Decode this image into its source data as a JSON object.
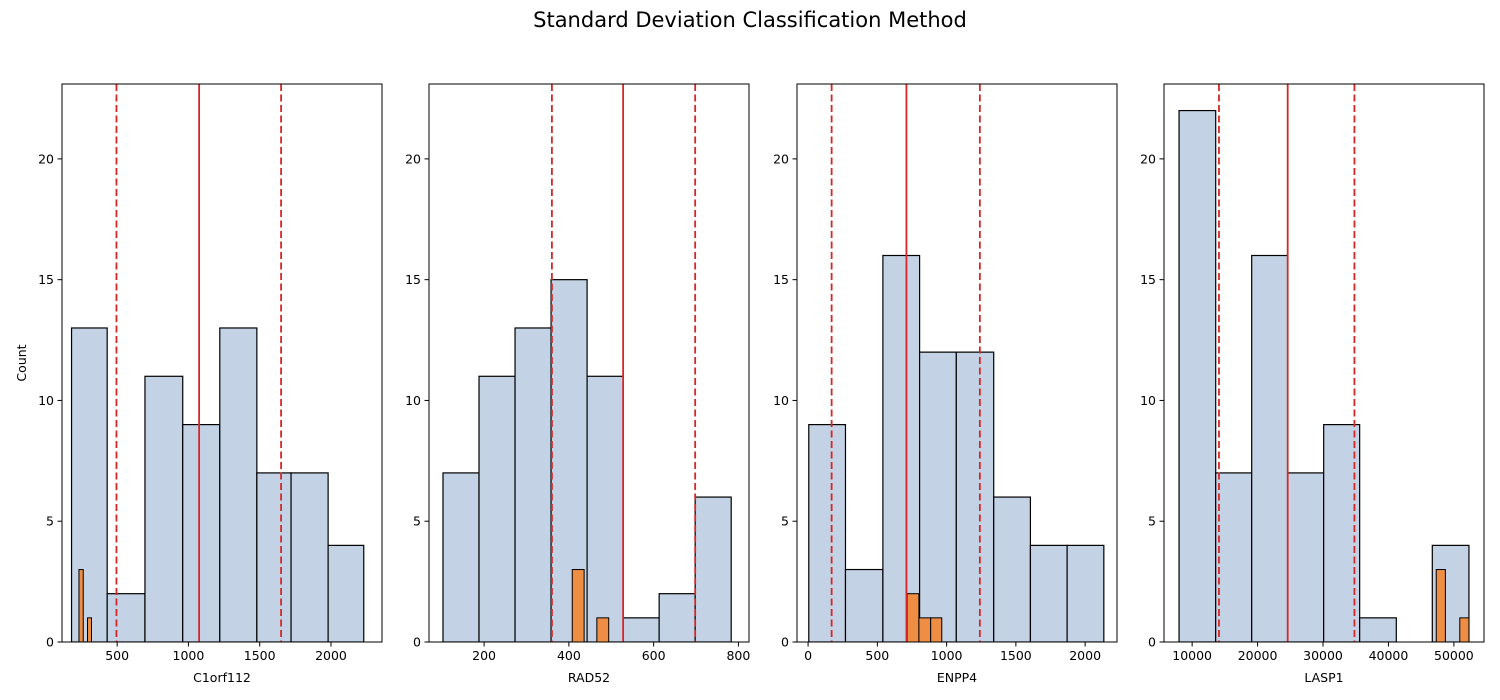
{
  "figure": {
    "title": "Standard Deviation Classification Method"
  },
  "colors": {
    "hist": "#c3d2e4",
    "highlight": "#ee8e44",
    "mean": "#d62728",
    "sd": "#d62728",
    "edge": "#000000"
  },
  "chart_data": [
    {
      "type": "bar",
      "xlabel": "C1orf112",
      "ylabel": "Count",
      "ylim": [
        0,
        23.1
      ],
      "xlim": [
        113,
        2358
      ],
      "xticks": [
        500,
        1000,
        1500,
        2000
      ],
      "yticks": [
        0,
        5,
        10,
        15,
        20
      ],
      "bins": [
        {
          "x0": 180,
          "x1": 430,
          "count": 13
        },
        {
          "x0": 430,
          "x1": 695,
          "count": 2
        },
        {
          "x0": 695,
          "x1": 960,
          "count": 11
        },
        {
          "x0": 960,
          "x1": 1220,
          "count": 9
        },
        {
          "x0": 1220,
          "x1": 1480,
          "count": 13
        },
        {
          "x0": 1480,
          "x1": 1720,
          "count": 7
        },
        {
          "x0": 1720,
          "x1": 1980,
          "count": 7
        },
        {
          "x0": 1980,
          "x1": 2230,
          "count": 4
        }
      ],
      "highlight_bins": [
        {
          "x0": 232,
          "x1": 262,
          "count": 3
        },
        {
          "x0": 292,
          "x1": 320,
          "count": 1
        }
      ],
      "mean": 1075,
      "sd_lines": [
        495,
        1650
      ]
    },
    {
      "type": "bar",
      "xlabel": "RAD52",
      "ylabel": "",
      "ylim": [
        0,
        23.1
      ],
      "xlim": [
        70,
        825
      ],
      "xticks": [
        200,
        400,
        600,
        800
      ],
      "yticks": [
        0,
        5,
        10,
        15,
        20
      ],
      "bins": [
        {
          "x0": 103,
          "x1": 188,
          "count": 7
        },
        {
          "x0": 188,
          "x1": 273,
          "count": 11
        },
        {
          "x0": 273,
          "x1": 358,
          "count": 13
        },
        {
          "x0": 358,
          "x1": 443,
          "count": 15
        },
        {
          "x0": 443,
          "x1": 528,
          "count": 11
        },
        {
          "x0": 528,
          "x1": 613,
          "count": 1
        },
        {
          "x0": 613,
          "x1": 698,
          "count": 2
        },
        {
          "x0": 698,
          "x1": 783,
          "count": 6
        }
      ],
      "highlight_bins": [
        {
          "x0": 408,
          "x1": 436,
          "count": 3
        },
        {
          "x0": 466,
          "x1": 494,
          "count": 1
        }
      ],
      "mean": 528,
      "sd_lines": [
        360,
        698
      ]
    },
    {
      "type": "bar",
      "xlabel": "ENPP4",
      "ylabel": "",
      "ylim": [
        0,
        23.1
      ],
      "xlim": [
        -80,
        2230
      ],
      "xticks": [
        0,
        500,
        1000,
        1500,
        2000
      ],
      "yticks": [
        0,
        5,
        10,
        15,
        20
      ],
      "bins": [
        {
          "x0": 5,
          "x1": 270,
          "count": 9
        },
        {
          "x0": 270,
          "x1": 540,
          "count": 3
        },
        {
          "x0": 540,
          "x1": 805,
          "count": 16
        },
        {
          "x0": 805,
          "x1": 1070,
          "count": 12
        },
        {
          "x0": 1070,
          "x1": 1340,
          "count": 12
        },
        {
          "x0": 1340,
          "x1": 1605,
          "count": 6
        },
        {
          "x0": 1605,
          "x1": 1870,
          "count": 4
        },
        {
          "x0": 1870,
          "x1": 2135,
          "count": 4
        }
      ],
      "highlight_bins": [
        {
          "x0": 715,
          "x1": 800,
          "count": 2
        },
        {
          "x0": 800,
          "x1": 885,
          "count": 1
        },
        {
          "x0": 885,
          "x1": 965,
          "count": 1
        }
      ],
      "mean": 710,
      "sd_lines": [
        170,
        1240
      ]
    },
    {
      "type": "bar",
      "xlabel": "LASP1",
      "ylabel": "",
      "ylim": [
        0,
        23.1
      ],
      "xlim": [
        5700,
        54600
      ],
      "xticks": [
        10000,
        20000,
        30000,
        40000,
        50000
      ],
      "yticks": [
        0,
        5,
        10,
        15,
        20
      ],
      "bins": [
        {
          "x0": 8000,
          "x1": 13600,
          "count": 22
        },
        {
          "x0": 13600,
          "x1": 19100,
          "count": 7
        },
        {
          "x0": 19100,
          "x1": 24600,
          "count": 16
        },
        {
          "x0": 24600,
          "x1": 30100,
          "count": 7
        },
        {
          "x0": 30100,
          "x1": 35600,
          "count": 9
        },
        {
          "x0": 35600,
          "x1": 41200,
          "count": 1
        },
        {
          "x0": 41200,
          "x1": 46700,
          "count": 0
        },
        {
          "x0": 46700,
          "x1": 52300,
          "count": 4
        }
      ],
      "highlight_bins": [
        {
          "x0": 47300,
          "x1": 48700,
          "count": 3
        },
        {
          "x0": 50900,
          "x1": 52300,
          "count": 1
        }
      ],
      "mean": 24600,
      "sd_lines": [
        14100,
        34800
      ]
    }
  ]
}
